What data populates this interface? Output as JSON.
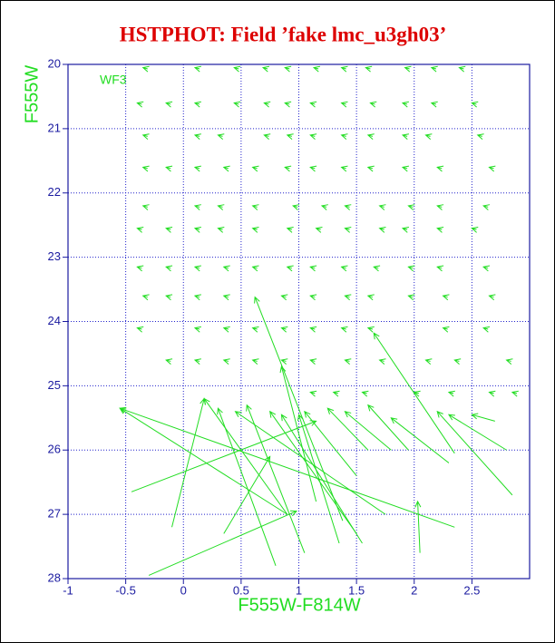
{
  "chart_data": {
    "type": "vector",
    "title": "HSTPHOT: Field ’fake lmc_u3gh03’",
    "annotation": "WF3",
    "xlabel": "F555W-F814W",
    "ylabel": "F555W",
    "xlim": [
      -1,
      3
    ],
    "ylim": [
      20,
      28
    ],
    "yinvert": true,
    "xticks": [
      -1,
      -0.5,
      0,
      0.5,
      1,
      1.5,
      2,
      2.5
    ],
    "yticks": [
      20,
      21,
      22,
      23,
      24,
      25,
      26,
      27,
      28
    ],
    "grid": true,
    "color": "#22dd22",
    "x": [
      -0.31,
      0.14,
      0.48,
      0.73,
      0.92,
      1.17,
      1.41,
      1.62,
      1.96,
      2.19,
      2.43,
      -0.36,
      -0.11,
      0.14,
      0.48,
      0.74,
      0.92,
      1.14,
      1.41,
      1.66,
      1.94,
      2.19,
      2.54,
      -0.31,
      0.14,
      0.34,
      0.74,
      0.94,
      1.14,
      1.41,
      1.64,
      1.94,
      2.14,
      2.59,
      -0.31,
      -0.11,
      0.14,
      0.39,
      0.64,
      0.92,
      1.14,
      1.41,
      1.64,
      1.94,
      2.24,
      2.69,
      -0.31,
      0.14,
      0.34,
      0.64,
      0.99,
      1.24,
      1.44,
      1.74,
      1.99,
      2.24,
      2.64,
      -0.36,
      -0.11,
      0.14,
      0.34,
      0.64,
      0.94,
      1.19,
      1.44,
      1.74,
      1.94,
      2.24,
      2.54,
      -0.36,
      -0.11,
      0.14,
      0.39,
      0.64,
      0.94,
      1.14,
      1.41,
      1.69,
      1.99,
      2.24,
      2.64,
      -0.31,
      -0.11,
      0.14,
      0.39,
      0.89,
      1.14,
      1.44,
      1.64,
      1.99,
      2.29,
      2.69,
      -0.36,
      0.14,
      0.39,
      0.64,
      0.89,
      1.14,
      1.41,
      1.64,
      2.29,
      2.64,
      -0.11,
      0.14,
      0.39,
      0.64,
      0.89,
      1.14,
      1.44,
      1.74,
      2.14,
      2.39,
      2.84,
      1.14,
      1.34,
      1.59,
      2.04,
      2.34,
      2.69,
      2.89,
      2.35,
      0.9,
      0.9,
      -0.1,
      1.38,
      -0.3,
      0.8,
      1.05,
      1.5,
      1.55,
      1.35,
      1.5,
      1.6,
      1.8,
      1.95,
      2.3,
      2.85,
      2.8,
      2.35,
      2.05,
      -0.45,
      0.35,
      1.15,
      1.75,
      2.7
    ],
    "y": [
      20.07,
      20.07,
      20.07,
      20.07,
      20.07,
      20.07,
      20.07,
      20.07,
      20.07,
      20.07,
      20.07,
      20.62,
      20.62,
      20.62,
      20.62,
      20.62,
      20.62,
      20.62,
      20.62,
      20.62,
      20.62,
      20.62,
      20.62,
      21.12,
      21.12,
      21.12,
      21.12,
      21.12,
      21.12,
      21.12,
      21.12,
      21.12,
      21.12,
      21.12,
      21.62,
      21.62,
      21.62,
      21.62,
      21.62,
      21.62,
      21.62,
      21.62,
      21.62,
      21.62,
      21.62,
      21.62,
      22.22,
      22.22,
      22.22,
      22.22,
      22.22,
      22.22,
      22.22,
      22.22,
      22.22,
      22.22,
      22.22,
      22.57,
      22.57,
      22.57,
      22.57,
      22.57,
      22.57,
      22.57,
      22.57,
      22.57,
      22.57,
      22.57,
      22.57,
      23.17,
      23.17,
      23.17,
      23.17,
      23.17,
      23.17,
      23.17,
      23.17,
      23.17,
      23.17,
      23.17,
      23.17,
      23.62,
      23.62,
      23.62,
      23.62,
      23.62,
      23.62,
      23.62,
      23.62,
      23.62,
      23.62,
      23.62,
      24.12,
      24.12,
      24.12,
      24.12,
      24.12,
      24.12,
      24.12,
      24.12,
      24.12,
      24.12,
      24.62,
      24.62,
      24.62,
      24.62,
      24.62,
      24.62,
      24.62,
      24.62,
      24.62,
      24.62,
      24.62,
      25.12,
      25.12,
      25.12,
      25.12,
      25.12,
      25.12,
      25.12,
      27.2,
      27.0,
      27.0,
      27.2,
      27.1,
      27.95,
      27.8,
      27.6,
      27.3,
      27.45,
      27.45,
      26.4,
      26.0,
      26.0,
      26.0,
      26.2,
      26.7,
      26.0,
      26.05,
      27.6,
      26.65,
      27.3,
      26.8,
      27.0,
      25.55
    ],
    "x_end": [
      -0.35,
      0.1,
      0.44,
      0.69,
      0.88,
      1.13,
      1.37,
      1.58,
      1.92,
      2.15,
      2.39,
      -0.4,
      -0.15,
      0.1,
      0.44,
      0.7,
      0.88,
      1.1,
      1.37,
      1.62,
      1.9,
      2.15,
      2.5,
      -0.35,
      0.1,
      0.3,
      0.7,
      0.9,
      1.1,
      1.37,
      1.6,
      1.9,
      2.1,
      2.55,
      -0.35,
      -0.15,
      0.1,
      0.35,
      0.6,
      0.88,
      1.1,
      1.37,
      1.6,
      1.9,
      2.2,
      2.65,
      -0.35,
      0.1,
      0.3,
      0.6,
      0.95,
      1.2,
      1.4,
      1.7,
      1.95,
      2.2,
      2.6,
      -0.4,
      -0.15,
      0.1,
      0.3,
      0.6,
      0.9,
      1.15,
      1.4,
      1.7,
      1.9,
      2.2,
      2.5,
      -0.4,
      -0.15,
      0.1,
      0.35,
      0.6,
      0.9,
      1.1,
      1.37,
      1.65,
      1.95,
      2.2,
      2.6,
      -0.35,
      -0.15,
      0.1,
      0.35,
      0.85,
      1.1,
      1.4,
      1.6,
      1.95,
      2.25,
      2.65,
      -0.4,
      0.1,
      0.35,
      0.6,
      0.85,
      1.1,
      1.37,
      1.6,
      2.25,
      2.6,
      -0.15,
      0.1,
      0.35,
      0.6,
      0.85,
      1.1,
      1.4,
      1.7,
      2.1,
      2.35,
      2.8,
      1.1,
      1.3,
      1.55,
      2.0,
      2.3,
      2.65,
      2.85,
      -0.55,
      -0.55,
      0.18,
      0.18,
      0.62,
      0.98,
      0.3,
      0.55,
      0.75,
      0.85,
      1.0,
      1.05,
      1.25,
      1.4,
      1.6,
      1.8,
      2.2,
      2.3,
      1.65,
      2.03,
      1.15,
      0.75,
      0.85,
      0.45,
      2.5
    ],
    "y_end": [
      20.05,
      20.05,
      20.05,
      20.05,
      20.05,
      20.05,
      20.05,
      20.05,
      20.05,
      20.05,
      20.05,
      20.6,
      20.6,
      20.6,
      20.6,
      20.6,
      20.6,
      20.6,
      20.6,
      20.6,
      20.6,
      20.6,
      20.6,
      21.1,
      21.1,
      21.1,
      21.1,
      21.1,
      21.1,
      21.1,
      21.1,
      21.1,
      21.1,
      21.1,
      21.6,
      21.6,
      21.6,
      21.6,
      21.6,
      21.6,
      21.6,
      21.6,
      21.6,
      21.6,
      21.6,
      21.6,
      22.2,
      22.2,
      22.2,
      22.2,
      22.2,
      22.2,
      22.2,
      22.2,
      22.2,
      22.2,
      22.2,
      22.55,
      22.55,
      22.55,
      22.55,
      22.55,
      22.55,
      22.55,
      22.55,
      22.55,
      22.55,
      22.55,
      22.55,
      23.15,
      23.15,
      23.15,
      23.15,
      23.15,
      23.15,
      23.15,
      23.15,
      23.15,
      23.15,
      23.15,
      23.15,
      23.6,
      23.6,
      23.6,
      23.6,
      23.6,
      23.6,
      23.6,
      23.6,
      23.6,
      23.6,
      23.6,
      24.1,
      24.1,
      24.1,
      24.1,
      24.1,
      24.1,
      24.1,
      24.1,
      24.1,
      24.1,
      24.6,
      24.6,
      24.6,
      24.6,
      24.6,
      24.6,
      24.6,
      24.6,
      24.6,
      24.6,
      24.6,
      25.1,
      25.1,
      25.1,
      25.1,
      25.1,
      25.1,
      25.1,
      25.35,
      25.35,
      25.2,
      25.2,
      23.62,
      26.95,
      25.35,
      25.3,
      25.4,
      25.45,
      25.45,
      25.4,
      25.35,
      25.4,
      25.3,
      25.5,
      25.4,
      25.45,
      24.18,
      26.8,
      25.55,
      26.1,
      24.7,
      25.4,
      25.45
    ]
  }
}
